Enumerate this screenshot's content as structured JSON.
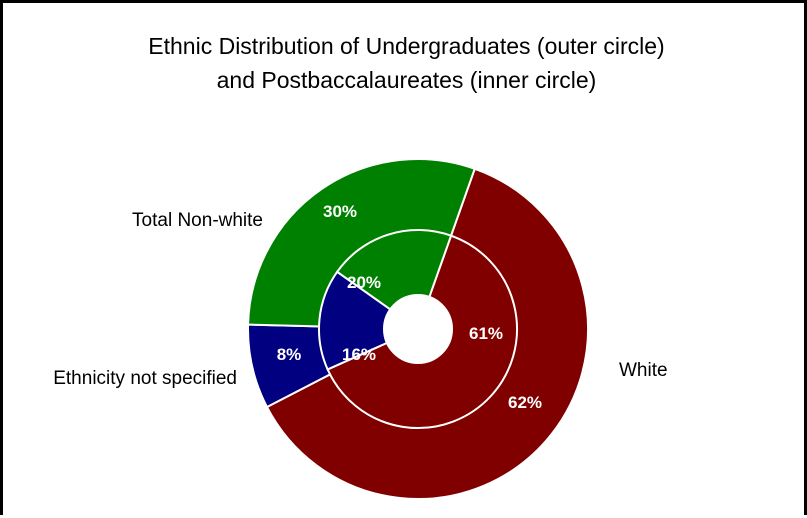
{
  "chart_data": {
    "type": "pie",
    "title_line1": "Ethnic Distribution of Undergraduates (outer circle)",
    "title_line2": "and Postbaccalaureates (inner circle)",
    "categories": [
      "White",
      "Ethnicity not specified",
      "Total Non-white"
    ],
    "colors": [
      "#800000",
      "#000080",
      "#008000"
    ],
    "series": [
      {
        "ring": "outer",
        "values": [
          62,
          8,
          30
        ],
        "labels": [
          "62%",
          "8%",
          "30%"
        ]
      },
      {
        "ring": "inner",
        "values": [
          61,
          16,
          20
        ],
        "labels": [
          "61%",
          "16%",
          "20%"
        ]
      }
    ]
  }
}
